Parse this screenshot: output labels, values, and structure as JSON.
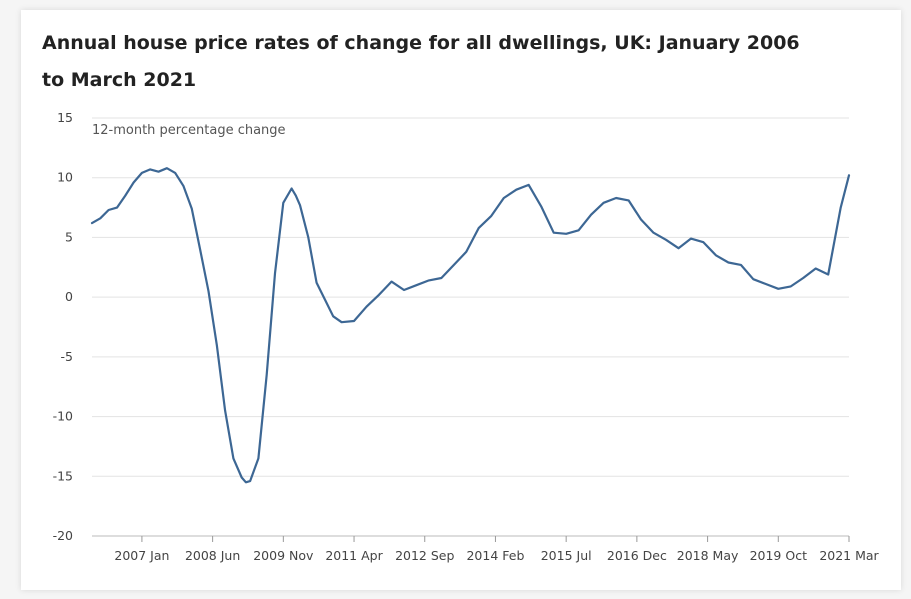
{
  "chart_data": {
    "type": "line",
    "title": "Annual house price rates of change for all dwellings, UK: January 2006 to March 2021",
    "ylabel": "12-month percentage change",
    "xlabel": "",
    "ylim": [
      -20,
      15
    ],
    "yticks": [
      15,
      10,
      5,
      0,
      -5,
      -10,
      -15,
      -20
    ],
    "xticks": [
      {
        "label": "2007 Jan",
        "date": "2007-01"
      },
      {
        "label": "2008 Jun",
        "date": "2008-06"
      },
      {
        "label": "2009 Nov",
        "date": "2009-11"
      },
      {
        "label": "2011 Apr",
        "date": "2011-04"
      },
      {
        "label": "2012 Sep",
        "date": "2012-09"
      },
      {
        "label": "2014 Feb",
        "date": "2014-02"
      },
      {
        "label": "2015 Jul",
        "date": "2015-07"
      },
      {
        "label": "2016 Dec",
        "date": "2016-12"
      },
      {
        "label": "2018 May",
        "date": "2018-05"
      },
      {
        "label": "2019 Oct",
        "date": "2019-10"
      },
      {
        "label": "2021 Mar",
        "date": "2021-03"
      }
    ],
    "grid": true,
    "line_color": "#3d6794",
    "series": [
      {
        "name": "",
        "x": [
          "2006-01",
          "2006-03",
          "2006-05",
          "2006-07",
          "2006-09",
          "2006-11",
          "2007-01",
          "2007-03",
          "2007-05",
          "2007-07",
          "2007-09",
          "2007-11",
          "2008-01",
          "2008-03",
          "2008-05",
          "2008-07",
          "2008-09",
          "2008-11",
          "2009-01",
          "2009-02",
          "2009-03",
          "2009-05",
          "2009-07",
          "2009-09",
          "2009-11",
          "2010-01",
          "2010-02",
          "2010-03",
          "2010-05",
          "2010-07",
          "2010-09",
          "2010-11",
          "2011-01",
          "2011-04",
          "2011-07",
          "2011-10",
          "2012-01",
          "2012-04",
          "2012-07",
          "2012-10",
          "2013-01",
          "2013-04",
          "2013-07",
          "2013-10",
          "2014-01",
          "2014-04",
          "2014-07",
          "2014-10",
          "2015-01",
          "2015-04",
          "2015-07",
          "2015-10",
          "2016-01",
          "2016-04",
          "2016-07",
          "2016-10",
          "2017-01",
          "2017-04",
          "2017-07",
          "2017-10",
          "2018-01",
          "2018-04",
          "2018-07",
          "2018-10",
          "2019-01",
          "2019-04",
          "2019-07",
          "2019-10",
          "2020-01",
          "2020-04",
          "2020-07",
          "2020-10",
          "2021-01",
          "2021-03"
        ],
        "values": [
          6.2,
          6.6,
          7.3,
          7.5,
          8.5,
          9.6,
          10.4,
          10.7,
          10.5,
          10.8,
          10.4,
          9.3,
          7.4,
          4.0,
          0.5,
          -4.0,
          -9.5,
          -13.5,
          -15.1,
          -15.5,
          -15.4,
          -13.5,
          -6.5,
          2.0,
          7.9,
          9.1,
          8.5,
          7.7,
          5.0,
          1.2,
          -0.2,
          -1.6,
          -2.1,
          -2.0,
          -0.8,
          0.2,
          1.3,
          0.6,
          1.0,
          1.4,
          1.6,
          2.7,
          3.8,
          5.8,
          6.8,
          8.3,
          9.0,
          9.4,
          7.6,
          5.4,
          5.3,
          5.6,
          6.9,
          7.9,
          8.3,
          8.1,
          6.5,
          5.4,
          4.8,
          4.1,
          4.9,
          4.6,
          3.5,
          2.9,
          2.7,
          1.5,
          1.1,
          0.7,
          0.9,
          1.6,
          2.4,
          1.9,
          7.5,
          10.2
        ]
      }
    ]
  }
}
